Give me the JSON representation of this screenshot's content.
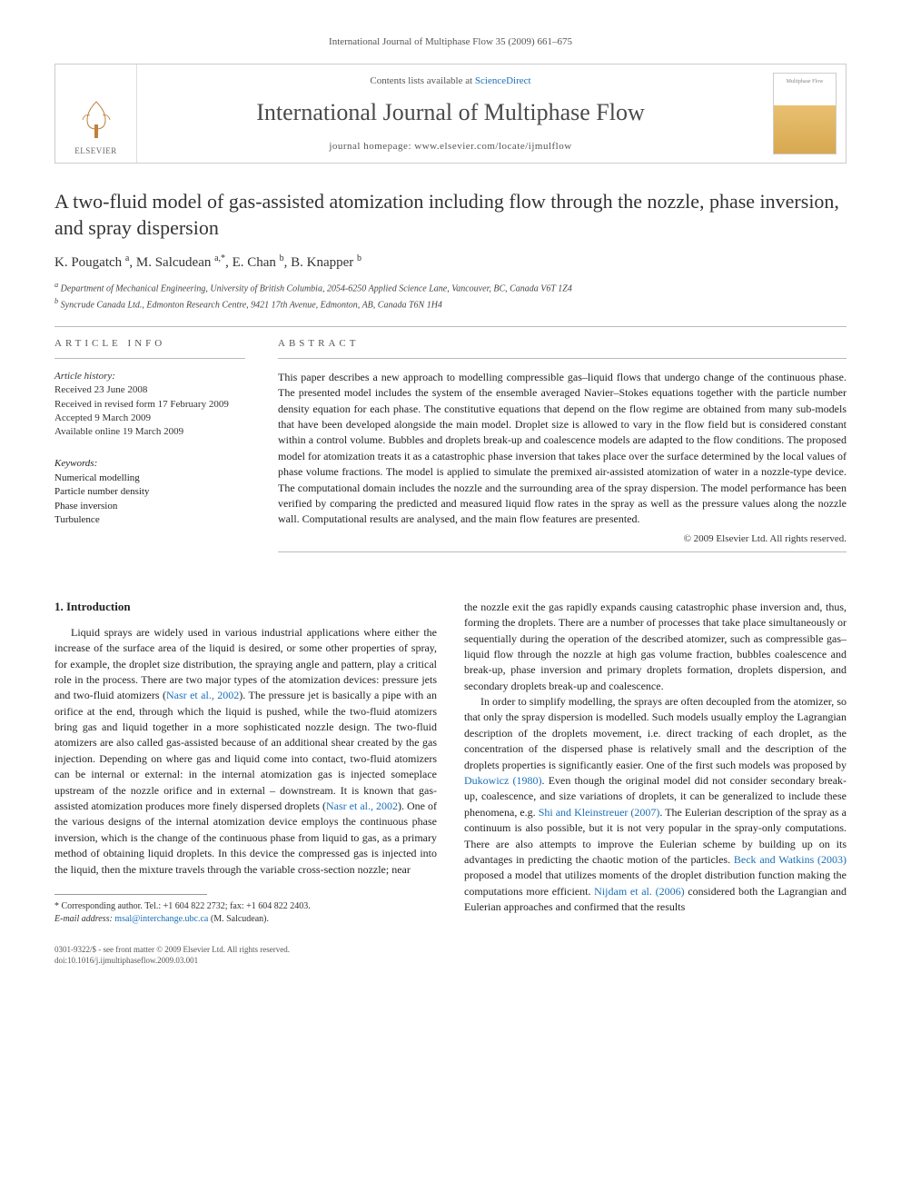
{
  "running_head": "International Journal of Multiphase Flow 35 (2009) 661–675",
  "masthead": {
    "contents_prefix": "Contents lists available at ",
    "contents_link": "ScienceDirect",
    "journal": "International Journal of Multiphase Flow",
    "homepage_prefix": "journal homepage: ",
    "homepage": "www.elsevier.com/locate/ijmulflow",
    "publisher": "ELSEVIER",
    "cover_label": "Multiphase Flow"
  },
  "title": "A two-fluid model of gas-assisted atomization including flow through the nozzle, phase inversion, and spray dispersion",
  "authors_html": "K. Pougatch <sup>a</sup>, M. Salcudean <sup>a,*</sup>, E. Chan <sup>b</sup>, B. Knapper <sup>b</sup>",
  "affiliations": {
    "a": "Department of Mechanical Engineering, University of British Columbia, 2054-6250 Applied Science Lane, Vancouver, BC, Canada V6T 1Z4",
    "b": "Syncrude Canada Ltd., Edmonton Research Centre, 9421 17th Avenue, Edmonton, AB, Canada T6N 1H4"
  },
  "article_info": {
    "label": "ARTICLE INFO",
    "history_head": "Article history:",
    "received": "Received 23 June 2008",
    "revised": "Received in revised form 17 February 2009",
    "accepted": "Accepted 9 March 2009",
    "online": "Available online 19 March 2009",
    "keywords_head": "Keywords:",
    "keywords": [
      "Numerical modelling",
      "Particle number density",
      "Phase inversion",
      "Turbulence"
    ]
  },
  "abstract": {
    "label": "ABSTRACT",
    "text": "This paper describes a new approach to modelling compressible gas–liquid flows that undergo change of the continuous phase. The presented model includes the system of the ensemble averaged Navier–Stokes equations together with the particle number density equation for each phase. The constitutive equations that depend on the flow regime are obtained from many sub-models that have been developed alongside the main model. Droplet size is allowed to vary in the flow field but is considered constant within a control volume. Bubbles and droplets break-up and coalescence models are adapted to the flow conditions. The proposed model for atomization treats it as a catastrophic phase inversion that takes place over the surface determined by the local values of phase volume fractions. The model is applied to simulate the premixed air-assisted atomization of water in a nozzle-type device. The computational domain includes the nozzle and the surrounding area of the spray dispersion. The model performance has been verified by comparing the predicted and measured liquid flow rates in the spray as well as the pressure values along the nozzle wall. Computational results are analysed, and the main flow features are presented.",
    "copyright": "© 2009 Elsevier Ltd. All rights reserved."
  },
  "body": {
    "intro_head": "1. Introduction",
    "col1_p1a": "Liquid sprays are widely used in various industrial applications where either the increase of the surface area of the liquid is desired, or some other properties of spray, for example, the droplet size distribution, the spraying angle and pattern, play a critical role in the process. There are two major types of the atomization devices: pressure jets and two-fluid atomizers (",
    "ref_nasr1": "Nasr et al., 2002",
    "col1_p1b": "). The pressure jet is basically a pipe with an orifice at the end, through which the liquid is pushed, while the two-fluid atomizers bring gas and liquid together in a more sophisticated nozzle design. The two-fluid atomizers are also called gas-assisted because of an additional shear created by the gas injection. Depending on where gas and liquid come into contact, two-fluid atomizers can be internal or external: in the internal atomization gas is injected someplace upstream of the nozzle orifice and in external – downstream. It is known that gas-assisted atomization produces more finely dispersed droplets (",
    "ref_nasr2": "Nasr et al., 2002",
    "col1_p1c": "). One of the various designs of the internal atomization device employs the continuous phase inversion, which is the change of the continuous phase from liquid to gas, as a primary method of obtaining liquid droplets. In this device the compressed gas is injected into the liquid, then the mixture travels through the variable cross-section nozzle; near",
    "col2_p1": "the nozzle exit the gas rapidly expands causing catastrophic phase inversion and, thus, forming the droplets. There are a number of processes that take place simultaneously or sequentially during the operation of the described atomizer, such as compressible gas–liquid flow through the nozzle at high gas volume fraction, bubbles coalescence and break-up, phase inversion and primary droplets formation, droplets dispersion, and secondary droplets break-up and coalescence.",
    "col2_p2a": "In order to simplify modelling, the sprays are often decoupled from the atomizer, so that only the spray dispersion is modelled. Such models usually employ the Lagrangian description of the droplets movement, i.e. direct tracking of each droplet, as the concentration of the dispersed phase is relatively small and the description of the droplets properties is significantly easier. One of the first such models was proposed by ",
    "ref_dukowicz": "Dukowicz (1980)",
    "col2_p2b": ". Even though the original model did not consider secondary break-up, coalescence, and size variations of droplets, it can be generalized to include these phenomena, e.g. ",
    "ref_shi": "Shi and Kleinstreuer (2007)",
    "col2_p2c": ". The Eulerian description of the spray as a continuum is also possible, but it is not very popular in the spray-only computations. There are also attempts to improve the Eulerian scheme by building up on its advantages in predicting the chaotic motion of the particles. ",
    "ref_beck": "Beck and Watkins (2003)",
    "col2_p2d": " proposed a model that utilizes moments of the droplet distribution function making the computations more efficient. ",
    "ref_nijdam": "Nijdam et al. (2006)",
    "col2_p2e": " considered both the Lagrangian and Eulerian approaches and confirmed that the results"
  },
  "footnote": {
    "corresponding": "* Corresponding author. Tel.: +1 604 822 2732; fax: +1 604 822 2403.",
    "email_label": "E-mail address:",
    "email": "msal@interchange.ubc.ca",
    "email_suffix": "(M. Salcudean)."
  },
  "footer": {
    "line1": "0301-9322/$ - see front matter © 2009 Elsevier Ltd. All rights reserved.",
    "line2": "doi:10.1016/j.ijmultiphaseflow.2009.03.001"
  }
}
